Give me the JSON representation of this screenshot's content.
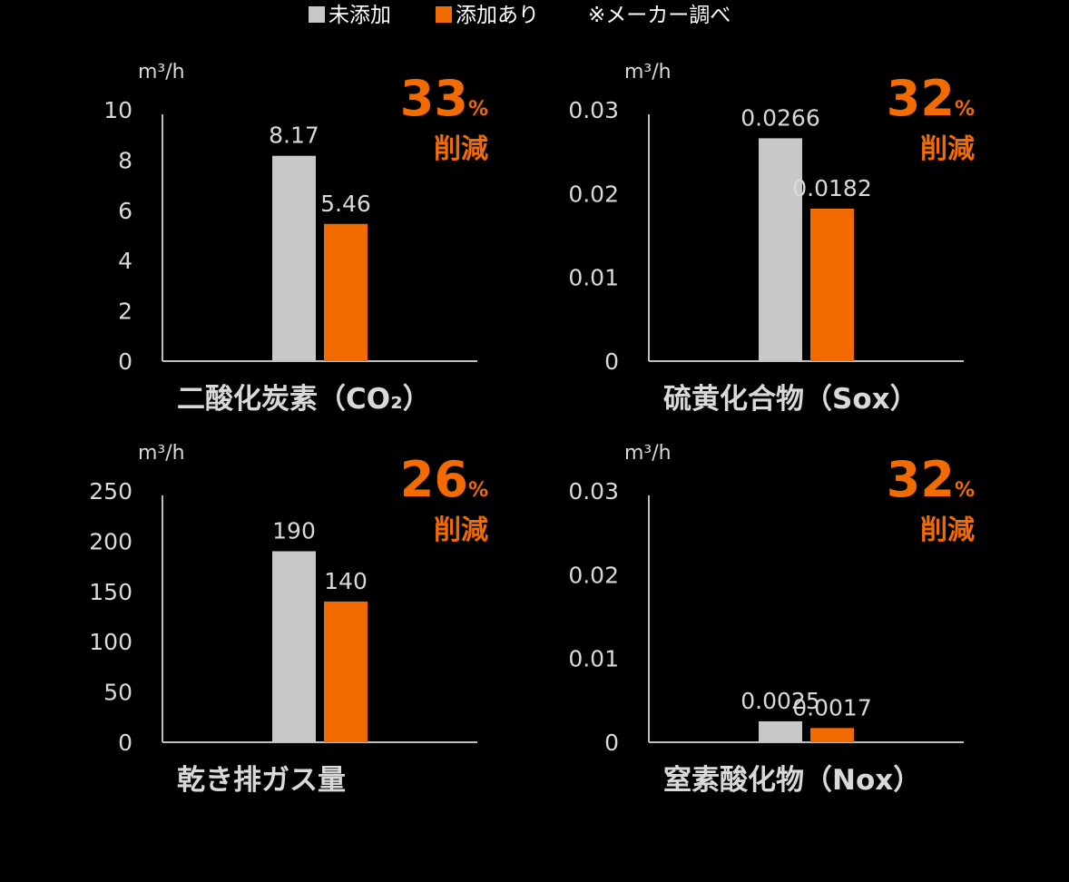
{
  "legend": {
    "items": [
      {
        "label": "未添加",
        "color": "#c8c8c8"
      },
      {
        "label": "添加あり",
        "color": "#f26b00"
      }
    ],
    "note": "※メーカー調べ"
  },
  "colors": {
    "background": "#000000",
    "text": "#d9d9d9",
    "accent": "#f26b00",
    "bar_without": "#c8c8c8",
    "bar_with": "#f26b00",
    "axis": "#bdbdbd"
  },
  "chart_data": [
    {
      "type": "bar",
      "title": "二酸化炭素（CO₂）",
      "unit": "m³/h",
      "ylim": [
        0,
        10
      ],
      "yticks": [
        "0",
        "2",
        "4",
        "6",
        "8",
        "10"
      ],
      "series": [
        {
          "name": "未添加",
          "values": [
            8.17
          ]
        },
        {
          "name": "添加あり",
          "values": [
            5.46
          ]
        }
      ],
      "value_labels": [
        "8.17",
        "5.46"
      ],
      "reduction": {
        "value": "33",
        "symbol": "%",
        "word": "削減"
      }
    },
    {
      "type": "bar",
      "title": "硫黄化合物（Sox）",
      "unit": "m³/h",
      "ylim": [
        0,
        0.03
      ],
      "yticks": [
        "0",
        "0.01",
        "0.02",
        "0.03"
      ],
      "series": [
        {
          "name": "未添加",
          "values": [
            0.0266
          ]
        },
        {
          "name": "添加あり",
          "values": [
            0.0182
          ]
        }
      ],
      "value_labels": [
        "0.0266",
        "0.0182"
      ],
      "reduction": {
        "value": "32",
        "symbol": "%",
        "word": "削減"
      }
    },
    {
      "type": "bar",
      "title": "乾き排ガス量",
      "unit": "m³/h",
      "ylim": [
        0,
        250
      ],
      "yticks": [
        "0",
        "50",
        "100",
        "150",
        "200",
        "250"
      ],
      "series": [
        {
          "name": "未添加",
          "values": [
            190
          ]
        },
        {
          "name": "添加あり",
          "values": [
            140
          ]
        }
      ],
      "value_labels": [
        "190",
        "140"
      ],
      "reduction": {
        "value": "26",
        "symbol": "%",
        "word": "削減"
      }
    },
    {
      "type": "bar",
      "title": "窒素酸化物（Nox）",
      "unit": "m³/h",
      "ylim": [
        0,
        0.03
      ],
      "yticks": [
        "0",
        "0.01",
        "0.02",
        "0.03"
      ],
      "series": [
        {
          "name": "未添加",
          "values": [
            0.0025
          ]
        },
        {
          "name": "添加あり",
          "values": [
            0.0017
          ]
        }
      ],
      "value_labels": [
        "0.0025",
        "0.0017"
      ],
      "reduction": {
        "value": "32",
        "symbol": "%",
        "word": "削減"
      }
    }
  ]
}
